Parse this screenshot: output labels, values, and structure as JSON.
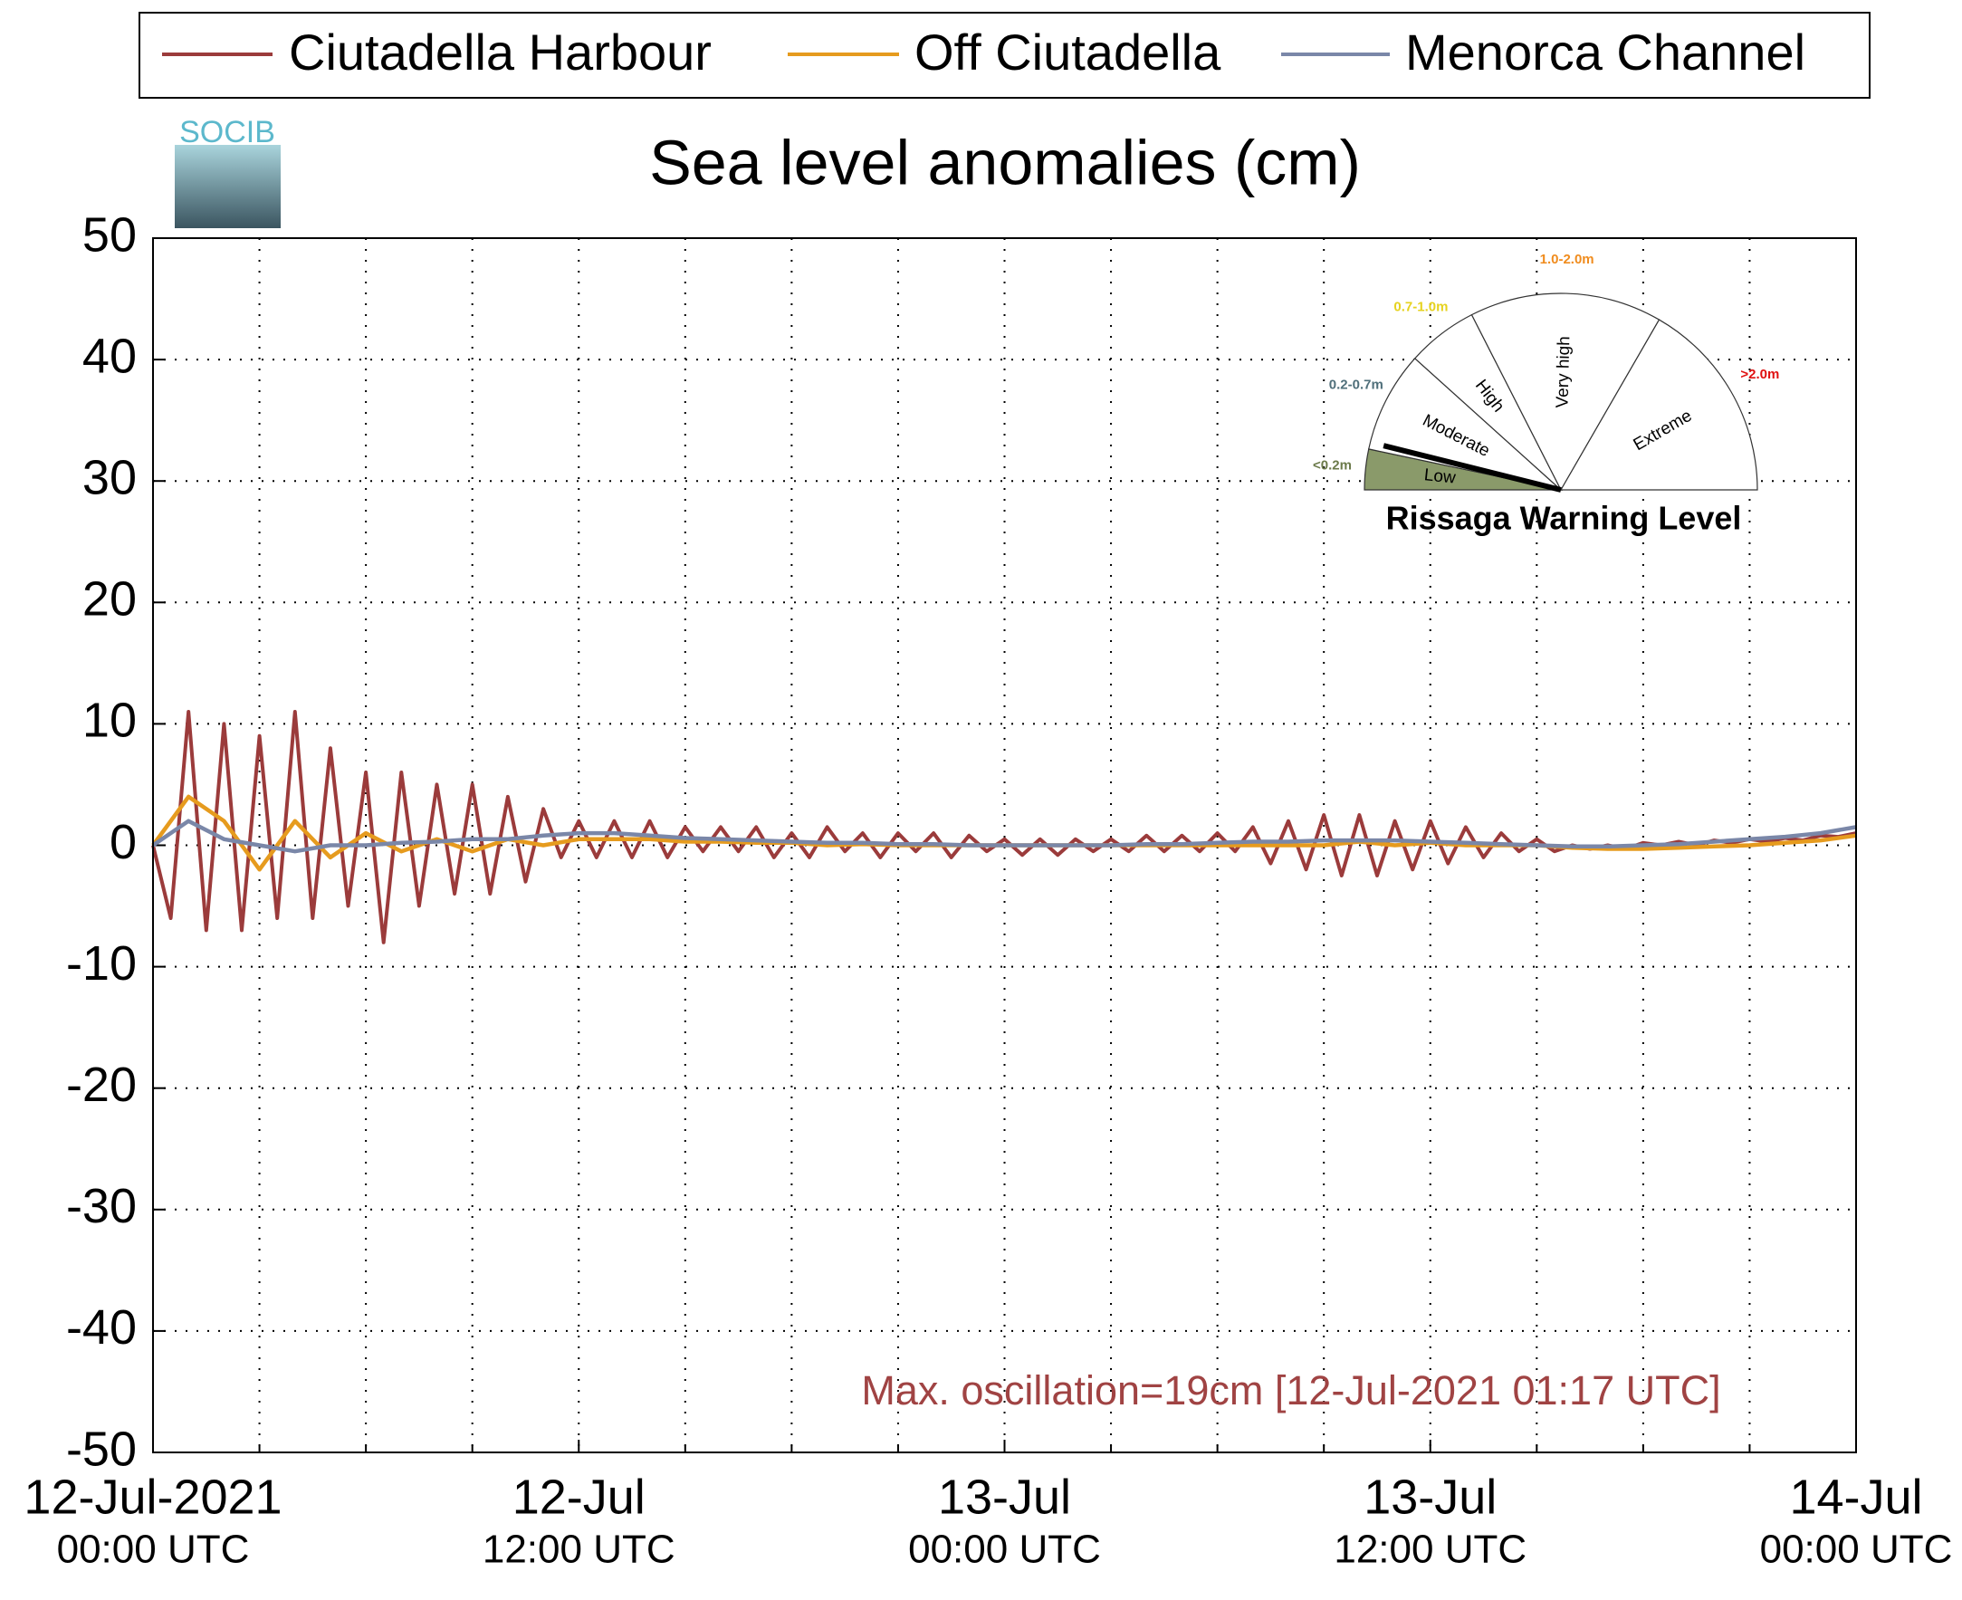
{
  "chart_data": {
    "type": "line",
    "title": "Sea level anomalies (cm)",
    "logo": "SOCIB",
    "annotation": "Max. oscillation=19cm [12-Jul-2021 01:17 UTC]",
    "annotation_color": "#a04343",
    "xlim": [
      "2021-07-12T00:00",
      "2021-07-14T00:00"
    ],
    "xticks": [
      {
        "value": "2021-07-12T00:00",
        "label": [
          "12-Jul-2021",
          "00:00 UTC"
        ]
      },
      {
        "value": "2021-07-12T12:00",
        "label": [
          "12-Jul",
          "12:00 UTC"
        ]
      },
      {
        "value": "2021-07-13T00:00",
        "label": [
          "13-Jul",
          "00:00 UTC"
        ]
      },
      {
        "value": "2021-07-13T12:00",
        "label": [
          "13-Jul",
          "12:00 UTC"
        ]
      },
      {
        "value": "2021-07-14T00:00",
        "label": [
          "14-Jul",
          "00:00 UTC"
        ]
      }
    ],
    "xminorticks": [
      "2021-07-12T03:00",
      "2021-07-12T06:00",
      "2021-07-12T09:00",
      "2021-07-12T15:00",
      "2021-07-12T18:00",
      "2021-07-12T21:00",
      "2021-07-13T03:00",
      "2021-07-13T06:00",
      "2021-07-13T09:00",
      "2021-07-13T15:00",
      "2021-07-13T18:00",
      "2021-07-13T21:00"
    ],
    "ylim": [
      -50,
      50
    ],
    "yticks": [
      -50,
      -40,
      -30,
      -20,
      -10,
      0,
      10,
      20,
      30,
      40,
      50
    ],
    "grid": true,
    "series": [
      {
        "name": "Ciutadella Harbour",
        "color": "#9b3b3b",
        "x": [
          "2021-07-12T00:00",
          "2021-07-12T00:30",
          "2021-07-12T01:00",
          "2021-07-12T01:30",
          "2021-07-12T02:00",
          "2021-07-12T02:30",
          "2021-07-12T03:00",
          "2021-07-12T03:30",
          "2021-07-12T04:00",
          "2021-07-12T04:30",
          "2021-07-12T05:00",
          "2021-07-12T05:30",
          "2021-07-12T06:00",
          "2021-07-12T06:30",
          "2021-07-12T07:00",
          "2021-07-12T07:30",
          "2021-07-12T08:00",
          "2021-07-12T08:30",
          "2021-07-12T09:00",
          "2021-07-12T09:30",
          "2021-07-12T10:00",
          "2021-07-12T10:30",
          "2021-07-12T11:00",
          "2021-07-12T11:30",
          "2021-07-12T12:00",
          "2021-07-12T12:30",
          "2021-07-12T13:00",
          "2021-07-12T13:30",
          "2021-07-12T14:00",
          "2021-07-12T14:30",
          "2021-07-12T15:00",
          "2021-07-12T15:30",
          "2021-07-12T16:00",
          "2021-07-12T16:30",
          "2021-07-12T17:00",
          "2021-07-12T17:30",
          "2021-07-12T18:00",
          "2021-07-12T18:30",
          "2021-07-12T19:00",
          "2021-07-12T19:30",
          "2021-07-12T20:00",
          "2021-07-12T20:30",
          "2021-07-12T21:00",
          "2021-07-12T21:30",
          "2021-07-12T22:00",
          "2021-07-12T22:30",
          "2021-07-12T23:00",
          "2021-07-12T23:30",
          "2021-07-13T00:00",
          "2021-07-13T00:30",
          "2021-07-13T01:00",
          "2021-07-13T01:30",
          "2021-07-13T02:00",
          "2021-07-13T02:30",
          "2021-07-13T03:00",
          "2021-07-13T03:30",
          "2021-07-13T04:00",
          "2021-07-13T04:30",
          "2021-07-13T05:00",
          "2021-07-13T05:30",
          "2021-07-13T06:00",
          "2021-07-13T06:30",
          "2021-07-13T07:00",
          "2021-07-13T07:30",
          "2021-07-13T08:00",
          "2021-07-13T08:30",
          "2021-07-13T09:00",
          "2021-07-13T09:30",
          "2021-07-13T10:00",
          "2021-07-13T10:30",
          "2021-07-13T11:00",
          "2021-07-13T11:30",
          "2021-07-13T12:00",
          "2021-07-13T12:30",
          "2021-07-13T13:00",
          "2021-07-13T13:30",
          "2021-07-13T14:00",
          "2021-07-13T14:30",
          "2021-07-13T15:00",
          "2021-07-13T15:30",
          "2021-07-13T16:00",
          "2021-07-13T16:30",
          "2021-07-13T17:00",
          "2021-07-13T17:30",
          "2021-07-13T18:00",
          "2021-07-13T18:30",
          "2021-07-13T19:00",
          "2021-07-13T19:30",
          "2021-07-13T20:00",
          "2021-07-13T20:30",
          "2021-07-13T21:00",
          "2021-07-13T21:30",
          "2021-07-13T22:00",
          "2021-07-13T22:30",
          "2021-07-13T23:00",
          "2021-07-13T23:30",
          "2021-07-14T00:00"
        ],
        "values": [
          0,
          -6,
          11,
          -7,
          10,
          -7,
          9,
          -6,
          11,
          -6,
          8,
          -5,
          6,
          -8,
          6,
          -5,
          5,
          -4,
          5,
          -4,
          4,
          -3,
          3,
          -1,
          2,
          -1,
          2,
          -1,
          2,
          -1,
          1.5,
          -0.5,
          1.5,
          -0.5,
          1.5,
          -1,
          1,
          -1,
          1.5,
          -0.5,
          1,
          -1,
          1,
          -0.5,
          1,
          -1,
          0.8,
          -0.5,
          0.5,
          -0.8,
          0.5,
          -0.8,
          0.5,
          -0.5,
          0.5,
          -0.5,
          0.8,
          -0.5,
          0.8,
          -0.5,
          1,
          -0.5,
          1.5,
          -1.5,
          2,
          -2,
          2.5,
          -2.5,
          2.5,
          -2.5,
          2,
          -2,
          2,
          -1.5,
          1.5,
          -1,
          1,
          -0.5,
          0.5,
          -0.5,
          0,
          -0.3,
          0,
          -0.3,
          0.2,
          0,
          0.3,
          0,
          0.4,
          0.2,
          0.5,
          0.3,
          0.6,
          0.4,
          0.8,
          0.7,
          1
        ]
      },
      {
        "name": "Off Ciutadella",
        "color": "#e69b1e",
        "x": [
          "2021-07-12T00:00",
          "2021-07-12T01:00",
          "2021-07-12T02:00",
          "2021-07-12T03:00",
          "2021-07-12T04:00",
          "2021-07-12T05:00",
          "2021-07-12T06:00",
          "2021-07-12T07:00",
          "2021-07-12T08:00",
          "2021-07-12T09:00",
          "2021-07-12T10:00",
          "2021-07-12T11:00",
          "2021-07-12T12:00",
          "2021-07-12T13:00",
          "2021-07-12T14:00",
          "2021-07-12T15:00",
          "2021-07-12T16:00",
          "2021-07-12T17:00",
          "2021-07-12T18:00",
          "2021-07-12T19:00",
          "2021-07-12T20:00",
          "2021-07-12T21:00",
          "2021-07-12T22:00",
          "2021-07-12T23:00",
          "2021-07-13T00:00",
          "2021-07-13T01:00",
          "2021-07-13T02:00",
          "2021-07-13T03:00",
          "2021-07-13T04:00",
          "2021-07-13T05:00",
          "2021-07-13T06:00",
          "2021-07-13T07:00",
          "2021-07-13T08:00",
          "2021-07-13T09:00",
          "2021-07-13T10:00",
          "2021-07-13T11:00",
          "2021-07-13T12:00",
          "2021-07-13T13:00",
          "2021-07-13T14:00",
          "2021-07-13T15:00",
          "2021-07-13T16:00",
          "2021-07-13T17:00",
          "2021-07-13T18:00",
          "2021-07-13T19:00",
          "2021-07-13T20:00",
          "2021-07-13T21:00",
          "2021-07-13T22:00",
          "2021-07-13T23:00",
          "2021-07-14T00:00"
        ],
        "values": [
          0,
          4,
          2,
          -2,
          2,
          -1,
          1,
          -0.5,
          0.5,
          -0.5,
          0.5,
          0,
          0.5,
          0.5,
          0.5,
          0.3,
          0.3,
          0.2,
          0.2,
          0,
          0.1,
          0,
          0,
          0,
          0,
          0,
          0,
          0,
          0,
          0,
          0,
          0,
          0,
          0,
          0.3,
          0,
          0.2,
          0,
          0,
          0,
          -0.2,
          -0.3,
          -0.3,
          -0.2,
          -0.1,
          0,
          0.2,
          0.4,
          0.8
        ]
      },
      {
        "name": "Menorca Channel",
        "color": "#7a87a8",
        "x": [
          "2021-07-12T00:00",
          "2021-07-12T01:00",
          "2021-07-12T02:00",
          "2021-07-12T03:00",
          "2021-07-12T04:00",
          "2021-07-12T05:00",
          "2021-07-12T06:00",
          "2021-07-12T07:00",
          "2021-07-12T08:00",
          "2021-07-12T09:00",
          "2021-07-12T10:00",
          "2021-07-12T11:00",
          "2021-07-12T12:00",
          "2021-07-12T13:00",
          "2021-07-12T14:00",
          "2021-07-12T15:00",
          "2021-07-12T16:00",
          "2021-07-12T17:00",
          "2021-07-12T18:00",
          "2021-07-12T19:00",
          "2021-07-12T20:00",
          "2021-07-12T21:00",
          "2021-07-12T22:00",
          "2021-07-12T23:00",
          "2021-07-13T00:00",
          "2021-07-13T01:00",
          "2021-07-13T02:00",
          "2021-07-13T03:00",
          "2021-07-13T04:00",
          "2021-07-13T05:00",
          "2021-07-13T06:00",
          "2021-07-13T07:00",
          "2021-07-13T08:00",
          "2021-07-13T09:00",
          "2021-07-13T10:00",
          "2021-07-13T11:00",
          "2021-07-13T12:00",
          "2021-07-13T13:00",
          "2021-07-13T14:00",
          "2021-07-13T15:00",
          "2021-07-13T16:00",
          "2021-07-13T17:00",
          "2021-07-13T18:00",
          "2021-07-13T19:00",
          "2021-07-13T20:00",
          "2021-07-13T21:00",
          "2021-07-13T22:00",
          "2021-07-13T23:00",
          "2021-07-14T00:00"
        ],
        "values": [
          0,
          2,
          0.5,
          0,
          -0.5,
          0,
          0,
          0.2,
          0.3,
          0.5,
          0.5,
          0.8,
          1,
          1,
          0.8,
          0.6,
          0.5,
          0.4,
          0.3,
          0.2,
          0.2,
          0.1,
          0.1,
          0,
          0,
          0,
          0,
          0,
          0.1,
          0.1,
          0.2,
          0.3,
          0.3,
          0.4,
          0.4,
          0.4,
          0.3,
          0.2,
          0.1,
          0,
          -0.1,
          -0.1,
          0,
          0.1,
          0.3,
          0.5,
          0.7,
          1,
          1.5
        ]
      }
    ],
    "gauge": {
      "title": "Rissaga Warning Level",
      "levels": [
        {
          "name": "Low",
          "range": "<0.2m",
          "color": "#6b7a4a"
        },
        {
          "name": "Moderate",
          "range": "0.2-0.7m",
          "color": "#4f6f7a"
        },
        {
          "name": "High",
          "range": "0.7-1.0m",
          "color": "#e6d21e"
        },
        {
          "name": "Very high",
          "range": "1.0-2.0m",
          "color": "#f08c1e"
        },
        {
          "name": "Extreme",
          "range": ">2.0m",
          "color": "#e01010"
        }
      ]
    }
  }
}
